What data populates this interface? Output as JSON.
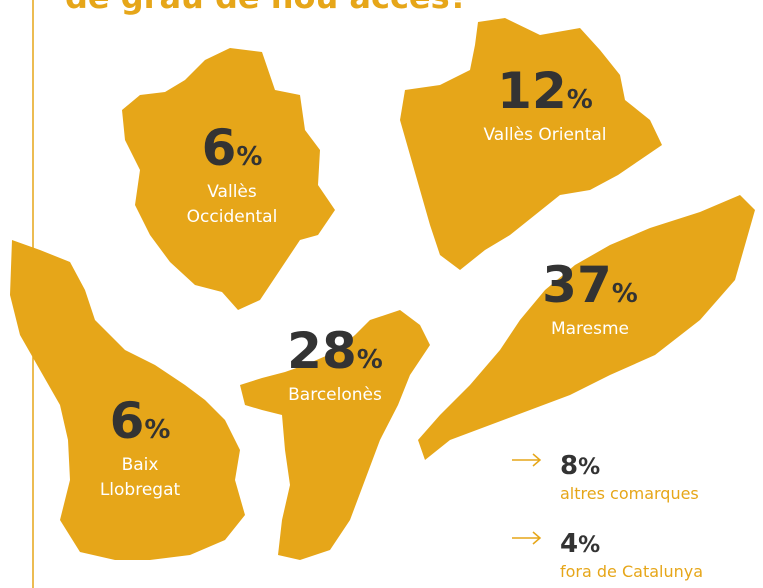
{
  "title": "de grau de nou accés?",
  "regions": [
    {
      "value": 6,
      "unit": "%",
      "name_lines": [
        "Vallès",
        "Occidental"
      ]
    },
    {
      "value": 12,
      "unit": "%",
      "name_lines": [
        "Vallès Oriental"
      ]
    },
    {
      "value": 37,
      "unit": "%",
      "name_lines": [
        "Maresme"
      ]
    },
    {
      "value": 28,
      "unit": "%",
      "name_lines": [
        "Barcelonès"
      ]
    },
    {
      "value": 6,
      "unit": "%",
      "name_lines": [
        "Baix",
        "Llobregat"
      ]
    }
  ],
  "others": [
    {
      "value": 8,
      "unit": "%",
      "label": "altres comarques"
    },
    {
      "value": 4,
      "unit": "%",
      "label": "fora de Catalunya"
    }
  ]
}
